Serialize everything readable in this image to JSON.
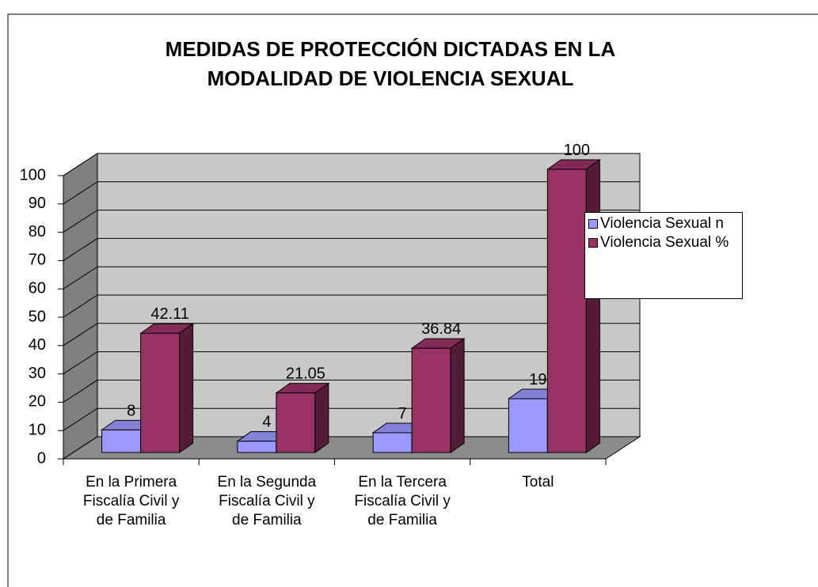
{
  "chart_data": {
    "type": "bar3d",
    "title": [
      "MEDIDAS DE PROTECCIÓN DICTADAS EN LA",
      "MODALIDAD DE VIOLENCIA SEXUAL"
    ],
    "categories": [
      "En la Primera Fiscalía Civil y de Familia",
      "En la Segunda Fiscalía Civil y de Familia",
      "En la Tercera Fiscalía Civil y de Familia",
      "Total"
    ],
    "series": [
      {
        "name": "Violencia Sexual n",
        "color": "#9999ff",
        "values": [
          8,
          4,
          7,
          19
        ]
      },
      {
        "name": "Violencia Sexual %",
        "color": "#993366",
        "values": [
          42.11,
          21.05,
          36.84,
          100
        ]
      }
    ],
    "ylim": [
      0,
      100
    ],
    "yticks": [
      0,
      10,
      20,
      30,
      40,
      50,
      60,
      70,
      80,
      90,
      100
    ],
    "grid": true,
    "legend": "right"
  }
}
